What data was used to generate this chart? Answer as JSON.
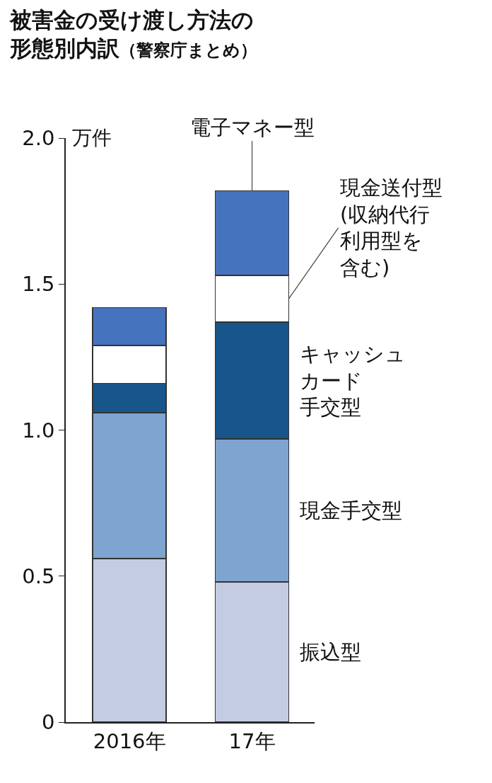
{
  "chart_data": {
    "type": "bar",
    "title": "被害金の受け渡し方法の形態別内訳",
    "subtitle": "（警察庁まとめ）",
    "ylabel": "万件",
    "categories": [
      "2016年",
      "17年"
    ],
    "stacked": true,
    "series": [
      {
        "name": "振込型",
        "color": "#c3cce2",
        "values": [
          0.56,
          0.48
        ]
      },
      {
        "name": "現金手交型",
        "color": "#7ea4d0",
        "values": [
          0.5,
          0.49
        ]
      },
      {
        "name": "キャッシュカード手交型",
        "color": "#17558a",
        "values": [
          0.1,
          0.4
        ]
      },
      {
        "name": "現金送付型(収納代行利用型を含む)",
        "color": "#ffffff",
        "values": [
          0.13,
          0.16
        ]
      },
      {
        "name": "電子マネー型",
        "color": "#4673bd",
        "values": [
          0.13,
          0.29
        ]
      }
    ],
    "ylim": [
      0,
      2.0
    ],
    "yticks": [
      0,
      0.5,
      {
        "value": 1.0,
        "label": "1.0"
      },
      1.5,
      {
        "value": 2.0,
        "label": "2.0"
      }
    ],
    "legend": false
  }
}
